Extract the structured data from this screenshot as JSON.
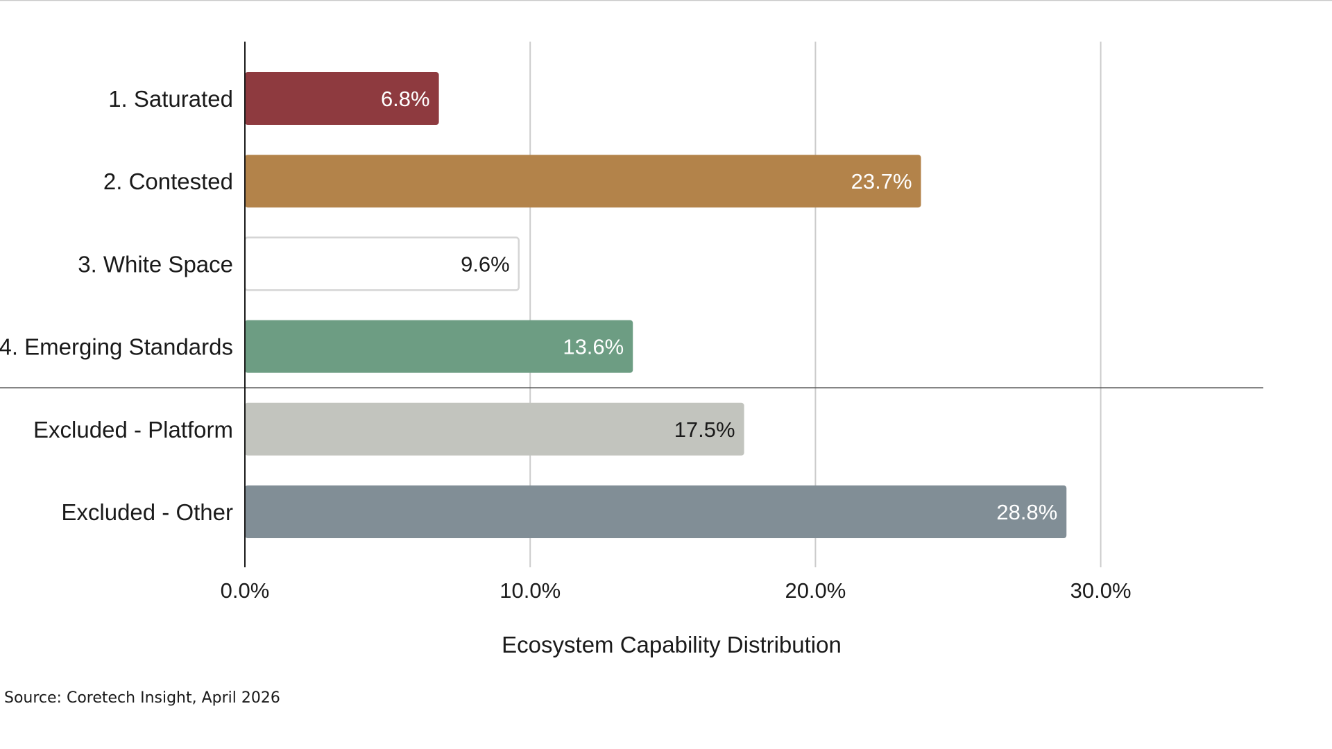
{
  "chart_data": {
    "type": "bar",
    "orientation": "horizontal",
    "categories": [
      "1. Saturated",
      "2. Contested",
      "3. White Space",
      "4. Emerging Standards",
      "Excluded - Platform",
      "Excluded - Other"
    ],
    "values": [
      6.8,
      23.7,
      9.6,
      13.6,
      17.5,
      28.8
    ],
    "value_labels": [
      "6.8%",
      "23.7%",
      "9.6%",
      "13.6%",
      "17.5%",
      "28.8%"
    ],
    "colors": [
      "#8e3a3f",
      "#b3834a",
      "#ffffff",
      "#6d9d83",
      "#c2c4be",
      "#818e96"
    ],
    "label_colors": [
      "#ffffff",
      "#ffffff",
      "#1a1a1a",
      "#ffffff",
      "#1a1a1a",
      "#ffffff"
    ],
    "xlim": [
      0,
      35.7
    ],
    "xticks": [
      0,
      10,
      20,
      30
    ],
    "xtick_labels": [
      "0.0%",
      "10.0%",
      "20.0%",
      "30.0%"
    ],
    "xlabel": "Ecosystem Capability Distribution",
    "ylabel": "",
    "title": "",
    "grid": true,
    "separator_after_index": 3,
    "source": "Source: Coretech Insight, April 2026"
  }
}
